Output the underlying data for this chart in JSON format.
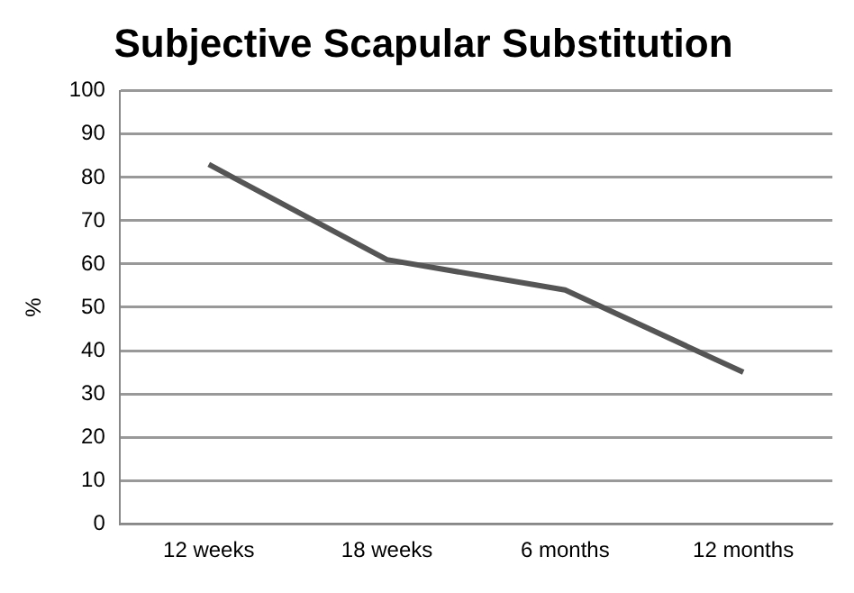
{
  "chart_data": {
    "type": "line",
    "title": "Subjective Scapular Substitution",
    "ylabel": "%",
    "categories": [
      "12 weeks",
      "18 weeks",
      "6 months",
      "12 months"
    ],
    "series": [
      {
        "color": "#555555",
        "values": [
          83,
          61,
          54,
          35
        ]
      }
    ],
    "ylim": [
      0,
      100
    ],
    "yticks": [
      0,
      10,
      20,
      30,
      40,
      50,
      60,
      70,
      80,
      90,
      100
    ],
    "grid": "y",
    "legend": false,
    "marker": "none",
    "line_style": "solid"
  }
}
